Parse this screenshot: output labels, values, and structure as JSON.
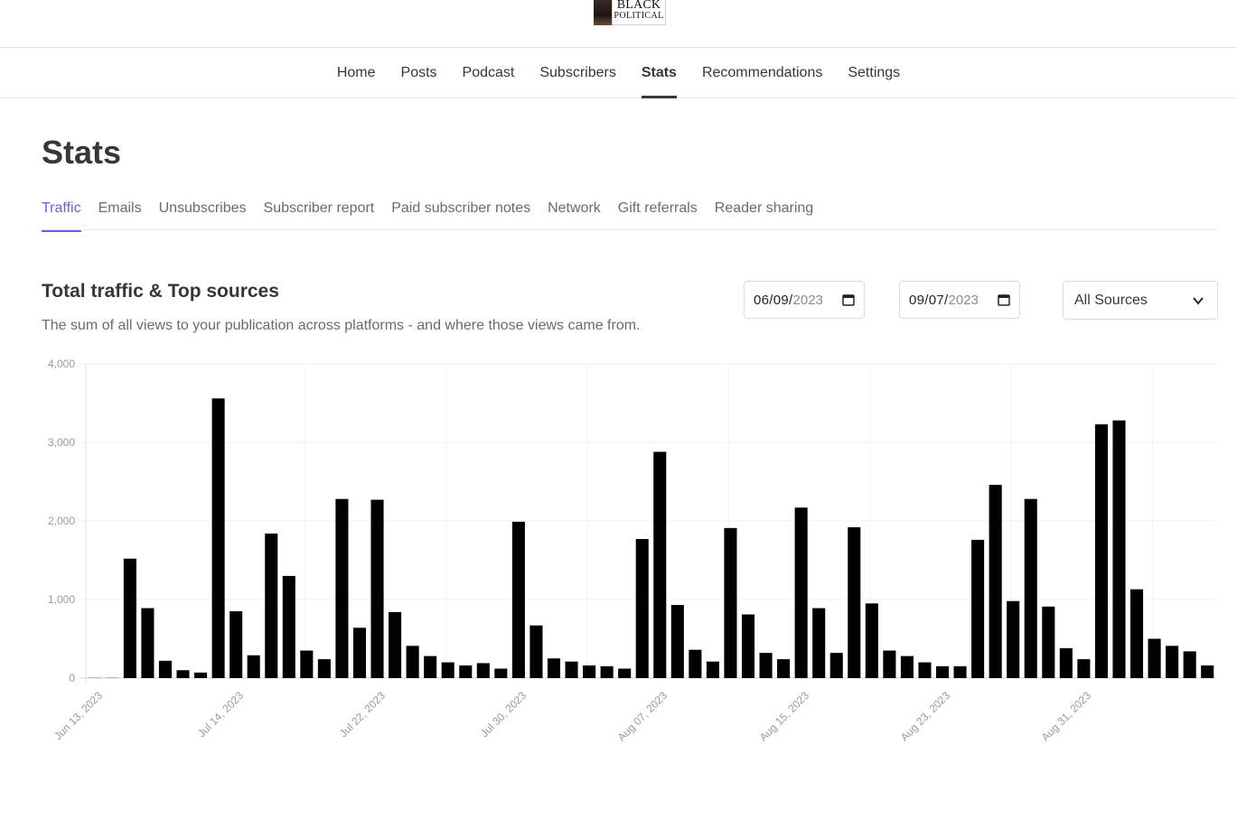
{
  "logo": {
    "line1": "BLACK",
    "line2": "POLITICAL",
    "line3": ""
  },
  "mainnav": {
    "items": [
      {
        "label": "Home",
        "active": false
      },
      {
        "label": "Posts",
        "active": false
      },
      {
        "label": "Podcast",
        "active": false
      },
      {
        "label": "Subscribers",
        "active": false
      },
      {
        "label": "Stats",
        "active": true
      },
      {
        "label": "Recommendations",
        "active": false
      },
      {
        "label": "Settings",
        "active": false
      }
    ]
  },
  "page": {
    "title": "Stats"
  },
  "subtabs": {
    "items": [
      {
        "label": "Traffic",
        "active": true
      },
      {
        "label": "Emails",
        "active": false
      },
      {
        "label": "Unsubscribes",
        "active": false
      },
      {
        "label": "Subscriber report",
        "active": false
      },
      {
        "label": "Paid subscriber notes",
        "active": false
      },
      {
        "label": "Network",
        "active": false
      },
      {
        "label": "Gift referrals",
        "active": false
      },
      {
        "label": "Reader sharing",
        "active": false
      }
    ]
  },
  "section": {
    "title": "Total traffic & Top sources",
    "description": "The sum of all views to your publication across platforms - and where those views came from."
  },
  "filters": {
    "start_date": {
      "md": "06/09/",
      "year": "2023"
    },
    "end_date": {
      "md": "09/07/",
      "year": "2023"
    },
    "source": "All Sources"
  },
  "colors": {
    "bar": "#000000",
    "accent": "#6c5ce7",
    "text": "#363737",
    "muted": "#6b6b6b"
  },
  "chart_data": {
    "type": "bar",
    "title": "",
    "xlabel": "",
    "ylabel": "",
    "ylim": [
      0,
      4000
    ],
    "y_ticks": [
      "0",
      "1,000",
      "2,000",
      "3,000",
      "4,000"
    ],
    "y_tick_values": [
      0,
      1000,
      2000,
      3000,
      4000
    ],
    "x_tick_labels": [
      "Jun 13, 2023",
      "Jul 14, 2023",
      "Jul 22, 2023",
      "Jul 30, 2023",
      "Aug 07, 2023",
      "Aug 15, 2023",
      "Aug 23, 2023",
      "Aug 31, 2023"
    ],
    "x_tick_bar_index": [
      0,
      8,
      16,
      24,
      32,
      40,
      48,
      56
    ],
    "grid": true,
    "values": [
      10,
      10,
      1520,
      890,
      220,
      100,
      70,
      3560,
      850,
      290,
      1840,
      1300,
      350,
      240,
      2280,
      640,
      2270,
      840,
      410,
      280,
      200,
      160,
      190,
      120,
      1990,
      670,
      250,
      210,
      160,
      150,
      120,
      1770,
      2880,
      930,
      360,
      210,
      1910,
      810,
      320,
      240,
      2170,
      890,
      320,
      1920,
      950,
      350,
      280,
      200,
      150,
      150,
      1760,
      2460,
      980,
      2280,
      910,
      380,
      240,
      3230,
      3280,
      1130,
      500,
      410,
      340,
      160
    ]
  }
}
